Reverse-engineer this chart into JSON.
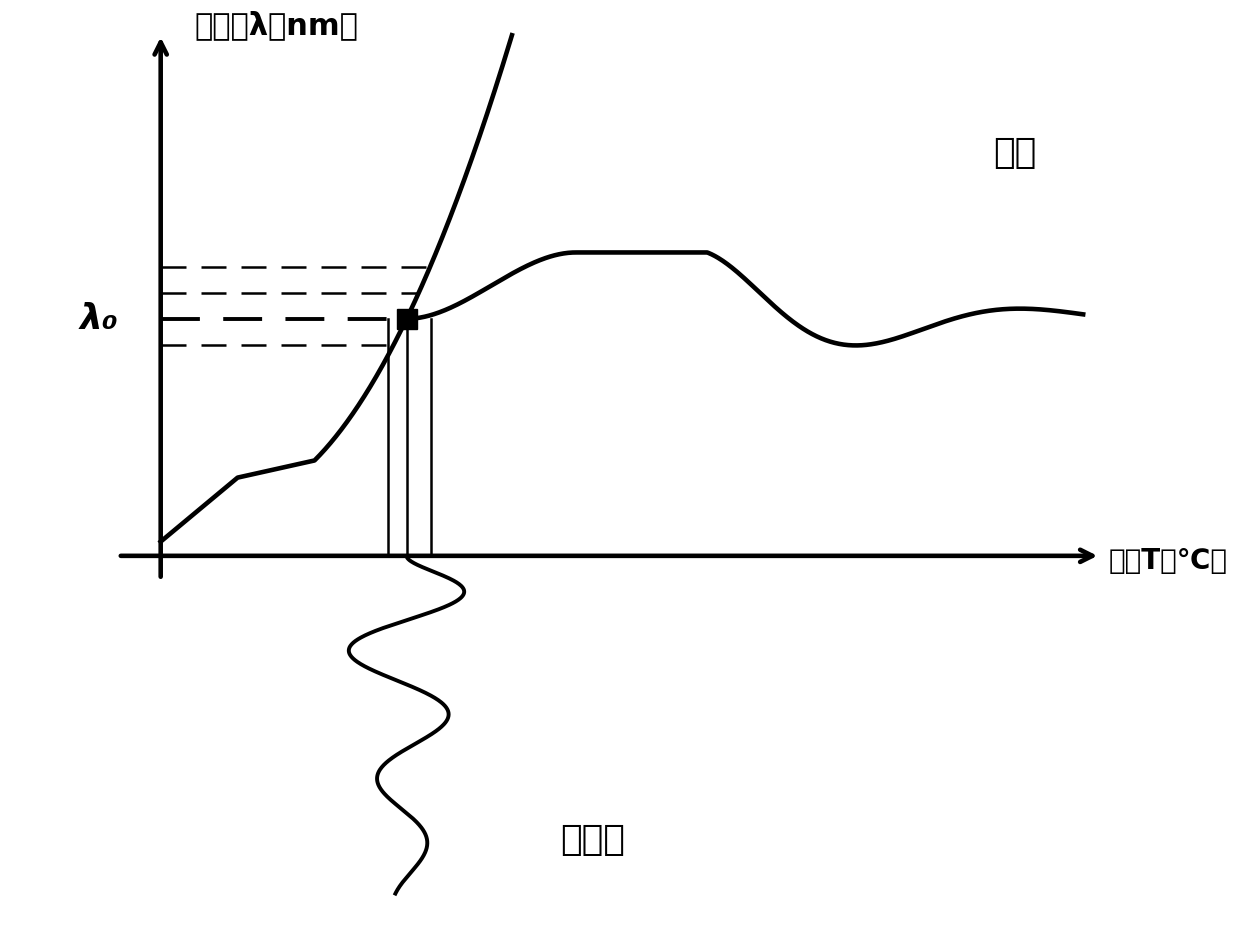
{
  "ylabel": "光波长λ（nm）",
  "xlabel": "温度T（℃）",
  "lambda0_label": "λ₀",
  "temp_label": "温度",
  "wavelength_label": "光波长",
  "background_color": "#ffffff",
  "line_color": "#000000",
  "fig_width": 12.4,
  "fig_height": 9.42,
  "lambda0_y": 5.0,
  "xlim": [
    -1.8,
    11.5
  ],
  "ylim": [
    -8.0,
    11.5
  ]
}
